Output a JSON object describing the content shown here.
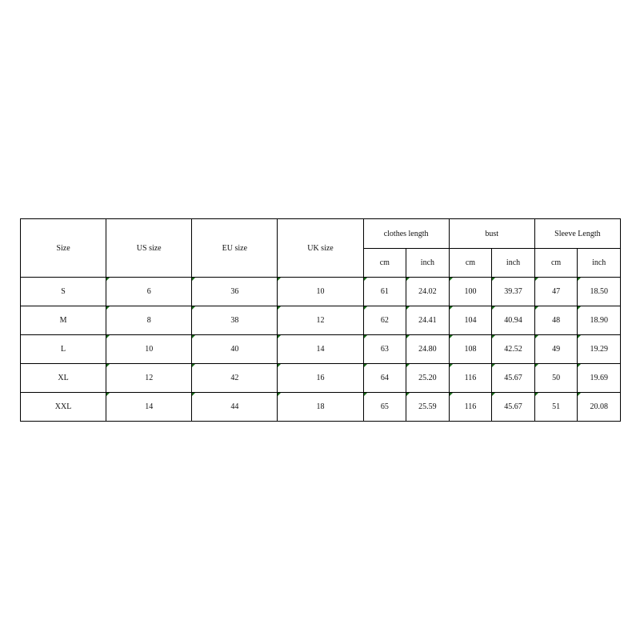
{
  "table": {
    "header": [
      "Size",
      "US size",
      "EU size",
      "UK size"
    ],
    "groups": [
      "clothes length",
      "bust",
      "Sleeve Length"
    ],
    "subheader": [
      "cm",
      "inch",
      "cm",
      "inch",
      "cm",
      "inch"
    ],
    "rows": [
      [
        "S",
        "6",
        "36",
        "10",
        "61",
        "24.02",
        "100",
        "39.37",
        "47",
        "18.50"
      ],
      [
        "M",
        "8",
        "38",
        "12",
        "62",
        "24.41",
        "104",
        "40.94",
        "48",
        "18.90"
      ],
      [
        "L",
        "10",
        "40",
        "14",
        "63",
        "24.80",
        "108",
        "42.52",
        "49",
        "19.29"
      ],
      [
        "XL",
        "12",
        "42",
        "16",
        "64",
        "25.20",
        "116",
        "45.67",
        "50",
        "19.69"
      ],
      [
        "XXL",
        "14",
        "44",
        "18",
        "65",
        "25.59",
        "116",
        "45.67",
        "51",
        "20.08"
      ]
    ]
  }
}
